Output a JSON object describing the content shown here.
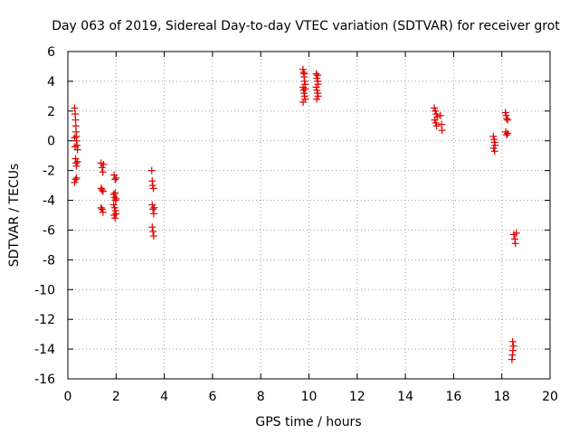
{
  "chart_data": {
    "type": "scatter",
    "title": "Day 063 of 2019, Sidereal Day-to-day VTEC variation (SDTVAR) for receiver grot",
    "xlabel": "GPS time / hours",
    "ylabel": "SDTVAR / TECUs",
    "xlim": [
      0,
      20
    ],
    "ylim": [
      -16,
      6
    ],
    "xticks": [
      0,
      2,
      4,
      6,
      8,
      10,
      12,
      14,
      16,
      18,
      20
    ],
    "yticks": [
      -16,
      -14,
      -12,
      -10,
      -8,
      -6,
      -4,
      -2,
      0,
      2,
      4,
      6
    ],
    "grid": true,
    "marker": "plus",
    "color": "#e00000",
    "series": [
      {
        "name": "SDTVAR",
        "points": [
          [
            0.28,
            2.2
          ],
          [
            0.3,
            1.8
          ],
          [
            0.32,
            1.4
          ],
          [
            0.33,
            1.0
          ],
          [
            0.34,
            0.6
          ],
          [
            0.35,
            0.3
          ],
          [
            0.36,
            0.0
          ],
          [
            0.38,
            -0.3
          ],
          [
            0.4,
            -0.6
          ],
          [
            0.28,
            0.2
          ],
          [
            0.3,
            -0.4
          ],
          [
            0.32,
            -1.2
          ],
          [
            0.34,
            -1.5
          ],
          [
            0.36,
            -1.7
          ],
          [
            0.28,
            -2.8
          ],
          [
            0.32,
            -2.6
          ],
          [
            0.36,
            -2.5
          ],
          [
            0.4,
            -1.4
          ],
          [
            1.38,
            -1.5
          ],
          [
            1.42,
            -1.8
          ],
          [
            1.45,
            -2.1
          ],
          [
            1.48,
            -1.6
          ],
          [
            1.38,
            -3.2
          ],
          [
            1.42,
            -3.3
          ],
          [
            1.46,
            -3.4
          ],
          [
            1.38,
            -4.5
          ],
          [
            1.42,
            -4.6
          ],
          [
            1.46,
            -4.8
          ],
          [
            1.92,
            -2.3
          ],
          [
            1.96,
            -2.6
          ],
          [
            2.0,
            -2.5
          ],
          [
            1.9,
            -3.6
          ],
          [
            1.94,
            -3.8
          ],
          [
            1.98,
            -4.0
          ],
          [
            1.9,
            -4.3
          ],
          [
            1.94,
            -4.5
          ],
          [
            1.98,
            -4.7
          ],
          [
            1.92,
            -5.0
          ],
          [
            1.96,
            -5.2
          ],
          [
            2.0,
            -4.9
          ],
          [
            1.96,
            -3.5
          ],
          [
            2.0,
            -3.9
          ],
          [
            3.48,
            -2.0
          ],
          [
            3.5,
            -2.7
          ],
          [
            3.52,
            -3.0
          ],
          [
            3.55,
            -3.2
          ],
          [
            3.5,
            -4.3
          ],
          [
            3.53,
            -4.6
          ],
          [
            3.56,
            -4.9
          ],
          [
            3.5,
            -5.8
          ],
          [
            3.53,
            -6.1
          ],
          [
            3.56,
            -6.4
          ],
          [
            3.58,
            -4.5
          ],
          [
            9.75,
            4.8
          ],
          [
            9.78,
            4.6
          ],
          [
            9.8,
            4.3
          ],
          [
            9.82,
            4.0
          ],
          [
            9.84,
            3.8
          ],
          [
            9.76,
            3.6
          ],
          [
            9.78,
            3.4
          ],
          [
            9.8,
            3.2
          ],
          [
            9.82,
            3.0
          ],
          [
            9.84,
            2.8
          ],
          [
            9.76,
            2.6
          ],
          [
            9.8,
            4.5
          ],
          [
            9.84,
            3.5
          ],
          [
            10.3,
            4.5
          ],
          [
            10.33,
            4.2
          ],
          [
            10.36,
            4.0
          ],
          [
            10.38,
            3.8
          ],
          [
            10.3,
            3.6
          ],
          [
            10.33,
            3.4
          ],
          [
            10.36,
            3.2
          ],
          [
            10.38,
            3.0
          ],
          [
            10.32,
            2.8
          ],
          [
            10.36,
            4.4
          ],
          [
            15.2,
            2.2
          ],
          [
            15.24,
            2.0
          ],
          [
            15.28,
            1.8
          ],
          [
            15.32,
            1.6
          ],
          [
            15.22,
            1.4
          ],
          [
            15.26,
            1.2
          ],
          [
            15.3,
            1.0
          ],
          [
            15.45,
            1.7
          ],
          [
            15.5,
            1.1
          ],
          [
            15.52,
            0.7
          ],
          [
            17.65,
            0.3
          ],
          [
            17.68,
            0.1
          ],
          [
            17.7,
            -0.1
          ],
          [
            17.72,
            -0.3
          ],
          [
            17.66,
            -0.5
          ],
          [
            17.7,
            -0.7
          ],
          [
            18.15,
            1.9
          ],
          [
            18.18,
            1.7
          ],
          [
            18.2,
            1.5
          ],
          [
            18.24,
            1.4
          ],
          [
            18.16,
            0.6
          ],
          [
            18.2,
            0.4
          ],
          [
            18.24,
            0.5
          ],
          [
            18.5,
            -6.3
          ],
          [
            18.54,
            -6.6
          ],
          [
            18.56,
            -6.9
          ],
          [
            18.6,
            -6.2
          ],
          [
            18.45,
            -13.5
          ],
          [
            18.48,
            -13.8
          ],
          [
            18.46,
            -14.1
          ],
          [
            18.44,
            -14.4
          ],
          [
            18.42,
            -14.7
          ]
        ]
      }
    ]
  }
}
